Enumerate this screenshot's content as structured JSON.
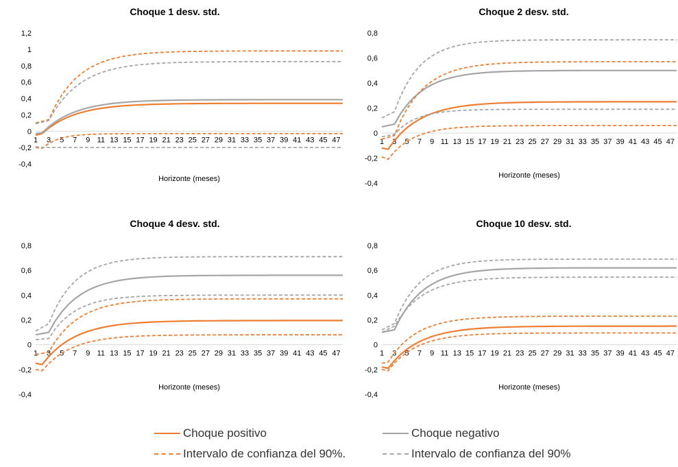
{
  "colors": {
    "positive": "#ed7d31",
    "negative": "#a5a5a5",
    "axis": "#d9d9d9"
  },
  "legend": {
    "items": [
      {
        "label": "Choque positivo",
        "color": "#ed7d31",
        "dash": false
      },
      {
        "label": "Choque negativo",
        "color": "#a5a5a5",
        "dash": false
      },
      {
        "label": "Intervalo de confianza del 90%.",
        "color": "#ed7d31",
        "dash": true
      },
      {
        "label": "Intervalo de confianza del 90%",
        "color": "#a5a5a5",
        "dash": true
      }
    ]
  },
  "chart_data": [
    {
      "type": "line",
      "title": "Choque 1 desv. std.",
      "xlabel": "Horizonte (meses)",
      "ylabel": "",
      "ylim": [
        -0.4,
        1.2
      ],
      "yticks": [
        "-0,4",
        "-0,2",
        "0",
        "0,2",
        "0,4",
        "0,6",
        "0,8",
        "1",
        "1,2"
      ],
      "x": [
        1,
        48
      ],
      "xtick_labels": [
        "1",
        "3",
        "5",
        "7",
        "9",
        "11",
        "13",
        "15",
        "17",
        "19",
        "21",
        "23",
        "25",
        "27",
        "29",
        "31",
        "33",
        "35",
        "37",
        "39",
        "41",
        "43",
        "45",
        "47"
      ],
      "series": [
        {
          "name": "Choque positivo",
          "color": "#ed7d31",
          "dash": false,
          "params": {
            "start": -0.05,
            "dip": -0.03,
            "dipAt": 2,
            "target": 0.34,
            "tau": 5.0
          }
        },
        {
          "name": "Choque negativo",
          "color": "#a5a5a5",
          "dash": false,
          "params": {
            "start": -0.03,
            "dip": -0.02,
            "dipAt": 2,
            "target": 0.385,
            "tau": 5.0
          }
        },
        {
          "name": "Intervalo de confianza del 90%.",
          "color": "#ed7d31",
          "dash": true,
          "params": {
            "start": 0.1,
            "dip": 0.14,
            "dipAt": 3,
            "target": 0.98,
            "tau": 4.5
          }
        },
        {
          "name": "Intervalo de confianza del 90%.",
          "color": "#ed7d31",
          "dash": true,
          "params": {
            "start": -0.2,
            "dip": -0.21,
            "dipAt": 2,
            "target": -0.03,
            "tau": 2.5
          }
        },
        {
          "name": "Intervalo de confianza del 90%",
          "color": "#a5a5a5",
          "dash": true,
          "params": {
            "start": 0.09,
            "dip": 0.13,
            "dipAt": 3,
            "target": 0.85,
            "tau": 4.8
          }
        },
        {
          "name": "Intervalo de confianza del 90%",
          "color": "#a5a5a5",
          "dash": true,
          "params": {
            "start": -0.19,
            "dip": -0.2,
            "dipAt": 2,
            "target": -0.2,
            "tau": 3.0
          }
        }
      ]
    },
    {
      "type": "line",
      "title": "Choque 2 desv. std.",
      "xlabel": "Horizonte (meses)",
      "ylabel": "",
      "ylim": [
        -0.4,
        0.8
      ],
      "yticks": [
        "-0,4",
        "-0,2",
        "0",
        "0,2",
        "0,4",
        "0,6",
        "0,8"
      ],
      "x": [
        1,
        48
      ],
      "xtick_labels": [
        "1",
        "3",
        "5",
        "7",
        "9",
        "11",
        "13",
        "15",
        "17",
        "19",
        "21",
        "23",
        "25",
        "27",
        "29",
        "31",
        "33",
        "35",
        "37",
        "39",
        "41",
        "43",
        "45",
        "47"
      ],
      "series": [
        {
          "name": "Choque positivo",
          "color": "#ed7d31",
          "dash": false,
          "params": {
            "start": -0.12,
            "dip": -0.13,
            "dipAt": 2,
            "target": 0.25,
            "tau": 5.0
          }
        },
        {
          "name": "Choque negativo",
          "color": "#a5a5a5",
          "dash": false,
          "params": {
            "start": 0.05,
            "dip": 0.07,
            "dipAt": 3,
            "target": 0.5,
            "tau": 4.5
          }
        },
        {
          "name": "Intervalo de confianza del 90%.",
          "color": "#ed7d31",
          "dash": true,
          "params": {
            "start": -0.05,
            "dip": -0.02,
            "dipAt": 3,
            "target": 0.57,
            "tau": 4.5
          }
        },
        {
          "name": "Intervalo de confianza del 90%.",
          "color": "#ed7d31",
          "dash": true,
          "params": {
            "start": -0.19,
            "dip": -0.21,
            "dipAt": 2,
            "target": 0.06,
            "tau": 4.0
          }
        },
        {
          "name": "Intervalo de confianza del 90%",
          "color": "#a5a5a5",
          "dash": true,
          "params": {
            "start": 0.12,
            "dip": 0.17,
            "dipAt": 3,
            "target": 0.745,
            "tau": 4.0
          }
        },
        {
          "name": "Intervalo de confianza del 90%",
          "color": "#a5a5a5",
          "dash": true,
          "params": {
            "start": -0.03,
            "dip": -0.01,
            "dipAt": 3,
            "target": 0.19,
            "tau": 3.5
          }
        }
      ]
    },
    {
      "type": "line",
      "title": "Choque 4 desv. std.",
      "xlabel": "Horizonte (meses)",
      "ylabel": "",
      "ylim": [
        -0.4,
        0.8
      ],
      "yticks": [
        "-0,4",
        "-0,2",
        "0",
        "0,2",
        "0,4",
        "0,6",
        "0,8"
      ],
      "x": [
        1,
        48
      ],
      "xtick_labels": [
        "1",
        "3",
        "5",
        "7",
        "9",
        "11",
        "13",
        "15",
        "17",
        "19",
        "21",
        "23",
        "25",
        "27",
        "29",
        "31",
        "33",
        "35",
        "37",
        "39",
        "41",
        "43",
        "45",
        "47"
      ],
      "series": [
        {
          "name": "Choque positivo",
          "color": "#ed7d31",
          "dash": false,
          "params": {
            "start": -0.15,
            "dip": -0.16,
            "dipAt": 2,
            "target": 0.195,
            "tau": 5.0
          }
        },
        {
          "name": "Choque negativo",
          "color": "#a5a5a5",
          "dash": false,
          "params": {
            "start": 0.08,
            "dip": 0.1,
            "dipAt": 3,
            "target": 0.56,
            "tau": 4.5
          }
        },
        {
          "name": "Intervalo de confianza del 90%.",
          "color": "#ed7d31",
          "dash": true,
          "params": {
            "start": -0.08,
            "dip": -0.06,
            "dipAt": 3,
            "target": 0.37,
            "tau": 4.5
          }
        },
        {
          "name": "Intervalo de confianza del 90%.",
          "color": "#ed7d31",
          "dash": true,
          "params": {
            "start": -0.2,
            "dip": -0.21,
            "dipAt": 2,
            "target": 0.08,
            "tau": 4.5
          }
        },
        {
          "name": "Intervalo de confianza del 90%",
          "color": "#a5a5a5",
          "dash": true,
          "params": {
            "start": 0.11,
            "dip": 0.17,
            "dipAt": 3,
            "target": 0.71,
            "tau": 4.0
          }
        },
        {
          "name": "Intervalo de confianza del 90%",
          "color": "#a5a5a5",
          "dash": true,
          "params": {
            "start": 0.04,
            "dip": 0.05,
            "dipAt": 3,
            "target": 0.4,
            "tau": 4.0
          }
        }
      ]
    },
    {
      "type": "line",
      "title": "Choque 10 desv. std.",
      "xlabel": "Horizonte (meses)",
      "ylabel": "",
      "ylim": [
        -0.4,
        0.8
      ],
      "yticks": [
        "-0,4",
        "-0,2",
        "0",
        "0,2",
        "0,4",
        "0,6",
        "0,8"
      ],
      "x": [
        1,
        48
      ],
      "xtick_labels": [
        "1",
        "3",
        "5",
        "7",
        "9",
        "11",
        "13",
        "15",
        "17",
        "19",
        "21",
        "23",
        "25",
        "27",
        "29",
        "31",
        "33",
        "35",
        "37",
        "39",
        "41",
        "43",
        "45",
        "47"
      ],
      "series": [
        {
          "name": "Choque positivo",
          "color": "#ed7d31",
          "dash": false,
          "params": {
            "start": -0.18,
            "dip": -0.19,
            "dipAt": 2,
            "target": 0.15,
            "tau": 5.0
          }
        },
        {
          "name": "Choque negativo",
          "color": "#a5a5a5",
          "dash": false,
          "params": {
            "start": 0.1,
            "dip": 0.12,
            "dipAt": 3,
            "target": 0.62,
            "tau": 4.5
          }
        },
        {
          "name": "Intervalo de confianza del 90%.",
          "color": "#ed7d31",
          "dash": true,
          "params": {
            "start": -0.15,
            "dip": -0.14,
            "dipAt": 2,
            "target": 0.23,
            "tau": 4.5
          }
        },
        {
          "name": "Intervalo de confianza del 90%.",
          "color": "#ed7d31",
          "dash": true,
          "params": {
            "start": -0.2,
            "dip": -0.21,
            "dipAt": 2,
            "target": 0.095,
            "tau": 4.5
          }
        },
        {
          "name": "Intervalo de confianza del 90%",
          "color": "#a5a5a5",
          "dash": true,
          "params": {
            "start": 0.12,
            "dip": 0.17,
            "dipAt": 3,
            "target": 0.69,
            "tau": 4.0
          }
        },
        {
          "name": "Intervalo de confianza del 90%",
          "color": "#a5a5a5",
          "dash": true,
          "params": {
            "start": 0.1,
            "dip": 0.15,
            "dipAt": 3,
            "target": 0.545,
            "tau": 4.5
          }
        }
      ]
    }
  ]
}
